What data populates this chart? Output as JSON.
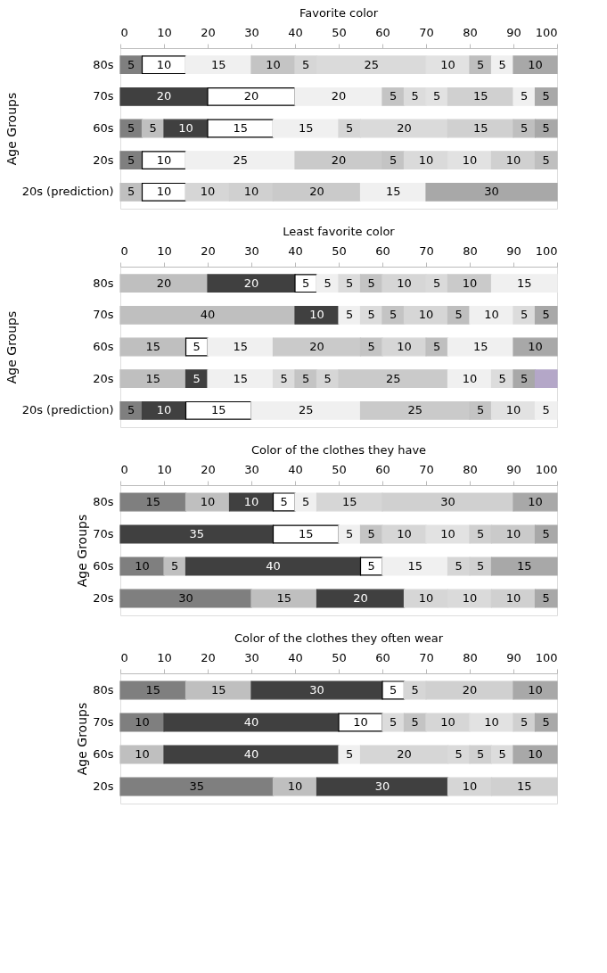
{
  "chart_data": [
    {
      "type": "bar",
      "orientation": "horizontal",
      "stacked": true,
      "data_labels": true,
      "title": "Favorite color",
      "ylabel": "Age Groups",
      "categories": [
        "80s",
        "70s",
        "60s",
        "20s",
        "20s (prediction)"
      ],
      "xlim": [
        0,
        100
      ],
      "xticks": [
        0,
        10,
        20,
        30,
        40,
        50,
        60,
        70,
        80,
        90,
        100
      ],
      "series": [
        {
          "values": [
            5,
            20,
            5,
            5,
            5
          ],
          "colors": [
            "#7f7f7f",
            "#404040",
            "#7f7f7f",
            "#7f7f7f",
            "#bfbfbf"
          ]
        },
        {
          "values": [
            10,
            20,
            5,
            10,
            10
          ],
          "colors": [
            "#ffffff",
            "#ffffff",
            "#bfbfbf",
            "#ffffff",
            "#ffffff"
          ]
        },
        {
          "values": [
            15,
            20,
            10,
            25,
            10
          ],
          "colors": [
            "#f0f0f0",
            "#f0f0f0",
            "#404040",
            "#f0f0f0",
            "#d6d6d6"
          ]
        },
        {
          "values": [
            10,
            5,
            15,
            20,
            10
          ],
          "colors": [
            "#c4c4c4",
            "#c4c4c4",
            "#ffffff",
            "#cacaca",
            "#d0d0d0"
          ]
        },
        {
          "values": [
            5,
            5,
            15,
            5,
            20
          ],
          "colors": [
            "#d6d6d6",
            "#dcdcdc",
            "#f0f0f0",
            "#c4c4c4",
            "#cacaca"
          ]
        },
        {
          "values": [
            25,
            5,
            5,
            10,
            15
          ],
          "colors": [
            "#dadada",
            "#e2e2e2",
            "#d6d6d6",
            "#dadada",
            "#f0f0f0"
          ]
        },
        {
          "values": [
            10,
            15,
            20,
            10,
            30
          ],
          "colors": [
            "#e2e2e2",
            "#d0d0d0",
            "#dadada",
            "#e2e2e2",
            "#a8a8a8"
          ]
        },
        {
          "values": [
            5,
            5,
            15,
            10,
            null
          ],
          "colors": [
            "#bfbfbf",
            "#f0f0f0",
            "#d0d0d0",
            "#d0d0d0",
            null
          ]
        },
        {
          "values": [
            5,
            5,
            5,
            5,
            null
          ],
          "colors": [
            "#f0f0f0",
            "#a8a8a8",
            "#bfbfbf",
            "#bfbfbf",
            null
          ]
        },
        {
          "values": [
            10,
            null,
            5,
            null,
            null
          ],
          "colors": [
            "#a8a8a8",
            null,
            "#a8a8a8",
            null,
            null
          ]
        }
      ]
    },
    {
      "type": "bar",
      "orientation": "horizontal",
      "stacked": true,
      "data_labels": true,
      "title": "Least favorite color",
      "ylabel": "Age Groups",
      "categories": [
        "80s",
        "70s",
        "60s",
        "20s",
        "20s (prediction)"
      ],
      "xlim": [
        0,
        100
      ],
      "xticks": [
        0,
        10,
        20,
        30,
        40,
        50,
        60,
        70,
        80,
        90,
        100
      ],
      "series": [
        {
          "values": [
            20,
            40,
            15,
            15,
            5
          ],
          "colors": [
            "#bfbfbf",
            "#bfbfbf",
            "#bfbfbf",
            "#bfbfbf",
            "#7f7f7f"
          ]
        },
        {
          "values": [
            20,
            10,
            5,
            5,
            10
          ],
          "colors": [
            "#404040",
            "#404040",
            "#ffffff",
            "#404040",
            "#404040"
          ]
        },
        {
          "values": [
            5,
            5,
            15,
            15,
            15
          ],
          "colors": [
            "#ffffff",
            "#f0f0f0",
            "#f0f0f0",
            "#f0f0f0",
            "#ffffff"
          ]
        },
        {
          "values": [
            5,
            5,
            20,
            5,
            25
          ],
          "colors": [
            "#f0f0f0",
            "#dcdcdc",
            "#cacaca",
            "#dcdcdc",
            "#f0f0f0"
          ]
        },
        {
          "values": [
            5,
            5,
            5,
            5,
            25
          ],
          "colors": [
            "#dcdcdc",
            "#c4c4c4",
            "#c4c4c4",
            "#c4c4c4",
            "#cacaca"
          ]
        },
        {
          "values": [
            5,
            10,
            10,
            5,
            5
          ],
          "colors": [
            "#c4c4c4",
            "#d6d6d6",
            "#d6d6d6",
            "#d6d6d6",
            "#c4c4c4"
          ]
        },
        {
          "values": [
            10,
            5,
            5,
            25,
            10
          ],
          "colors": [
            "#d6d6d6",
            "#bfbfbf",
            "#bfbfbf",
            "#cacaca",
            "#e2e2e2"
          ]
        },
        {
          "values": [
            5,
            10,
            15,
            10,
            5
          ],
          "colors": [
            "#dadada",
            "#f0f0f0",
            "#f0f0f0",
            "#f0f0f0",
            "#f0f0f0"
          ]
        },
        {
          "values": [
            10,
            5,
            10,
            5,
            null
          ],
          "colors": [
            "#cacaca",
            "#dcdcdc",
            "#a8a8a8",
            "#dcdcdc",
            null
          ]
        },
        {
          "values": [
            15,
            5,
            null,
            5,
            null
          ],
          "colors": [
            "#f0f0f0",
            "#a8a8a8",
            null,
            "#a8a8a8",
            null
          ]
        },
        {
          "values": [
            null,
            null,
            null,
            5,
            null
          ],
          "colors": [
            null,
            null,
            null,
            "#b4a7c8",
            null
          ],
          "value_labels": [
            null,
            null,
            null,
            null,
            null
          ]
        }
      ]
    },
    {
      "type": "bar",
      "orientation": "horizontal",
      "stacked": true,
      "data_labels": true,
      "title": "Color of the clothes they have",
      "ylabel": "Age Groups",
      "categories": [
        "80s",
        "70s",
        "60s",
        "20s"
      ],
      "xlim": [
        0,
        100
      ],
      "xticks": [
        0,
        10,
        20,
        30,
        40,
        50,
        60,
        70,
        80,
        90,
        100
      ],
      "series": [
        {
          "values": [
            15,
            35,
            10,
            30
          ],
          "colors": [
            "#7f7f7f",
            "#404040",
            "#7f7f7f",
            "#7f7f7f"
          ]
        },
        {
          "values": [
            10,
            15,
            5,
            15
          ],
          "colors": [
            "#bfbfbf",
            "#ffffff",
            "#bfbfbf",
            "#bfbfbf"
          ]
        },
        {
          "values": [
            10,
            5,
            40,
            20
          ],
          "colors": [
            "#404040",
            "#f0f0f0",
            "#404040",
            "#404040"
          ]
        },
        {
          "values": [
            5,
            5,
            5,
            10
          ],
          "colors": [
            "#ffffff",
            "#c4c4c4",
            "#ffffff",
            "#d6d6d6"
          ]
        },
        {
          "values": [
            5,
            10,
            15,
            10
          ],
          "colors": [
            "#f0f0f0",
            "#d6d6d6",
            "#f0f0f0",
            "#dadada"
          ]
        },
        {
          "values": [
            15,
            10,
            5,
            10
          ],
          "colors": [
            "#d6d6d6",
            "#e2e2e2",
            "#d6d6d6",
            "#d0d0d0"
          ]
        },
        {
          "values": [
            30,
            5,
            5,
            5
          ],
          "colors": [
            "#d0d0d0",
            "#d0d0d0",
            "#d0d0d0",
            "#a8a8a8"
          ]
        },
        {
          "values": [
            10,
            10,
            15,
            null
          ],
          "colors": [
            "#a8a8a8",
            "#cacaca",
            "#a8a8a8",
            null
          ]
        },
        {
          "values": [
            null,
            5,
            null,
            null
          ],
          "colors": [
            null,
            "#a8a8a8",
            null,
            null
          ]
        }
      ]
    },
    {
      "type": "bar",
      "orientation": "horizontal",
      "stacked": true,
      "data_labels": true,
      "title": "Color of the clothes they often wear",
      "ylabel": "Age Groups",
      "categories": [
        "80s",
        "70s",
        "60s",
        "20s"
      ],
      "xlim": [
        0,
        100
      ],
      "xticks": [
        0,
        10,
        20,
        30,
        40,
        50,
        60,
        70,
        80,
        90,
        100
      ],
      "series": [
        {
          "values": [
            15,
            10,
            10,
            35
          ],
          "colors": [
            "#7f7f7f",
            "#7f7f7f",
            "#bfbfbf",
            "#7f7f7f"
          ]
        },
        {
          "values": [
            15,
            40,
            40,
            10
          ],
          "colors": [
            "#bfbfbf",
            "#404040",
            "#404040",
            "#bfbfbf"
          ]
        },
        {
          "values": [
            30,
            10,
            5,
            30
          ],
          "colors": [
            "#404040",
            "#ffffff",
            "#f0f0f0",
            "#404040"
          ]
        },
        {
          "values": [
            5,
            5,
            20,
            10
          ],
          "colors": [
            "#ffffff",
            "#dcdcdc",
            "#d6d6d6",
            "#d6d6d6"
          ]
        },
        {
          "values": [
            5,
            5,
            5,
            15
          ],
          "colors": [
            "#d6d6d6",
            "#c4c4c4",
            "#dadada",
            "#d0d0d0"
          ]
        },
        {
          "values": [
            20,
            10,
            5,
            null
          ],
          "colors": [
            "#d0d0d0",
            "#d6d6d6",
            "#d0d0d0",
            null
          ]
        },
        {
          "values": [
            10,
            10,
            5,
            null
          ],
          "colors": [
            "#a8a8a8",
            "#e2e2e2",
            "#dcdcdc",
            null
          ]
        },
        {
          "values": [
            null,
            5,
            10,
            null
          ],
          "colors": [
            null,
            "#d0d0d0",
            "#a8a8a8",
            null
          ]
        },
        {
          "values": [
            null,
            5,
            null,
            null
          ],
          "colors": [
            null,
            "#a8a8a8",
            null,
            null
          ]
        }
      ]
    }
  ]
}
